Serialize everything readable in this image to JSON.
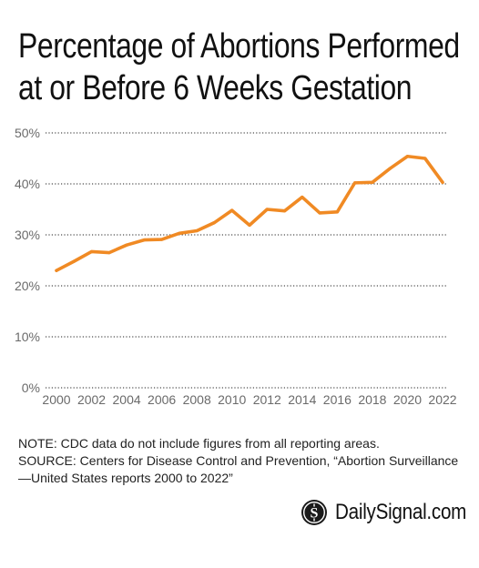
{
  "title_line1": "Percentage of Abortions Performed",
  "title_line2": "at or Before 6 Weeks Gestation",
  "note": "NOTE: CDC data do not include figures from all reporting areas.",
  "source_line1": "SOURCE: Centers for Disease Control and Prevention, “Abortion Surveillance",
  "source_line2": "—United States reports 2000 to 2022”",
  "brand": "DailySignal.com",
  "colors": {
    "line": "#f08a24",
    "grid": "#222222",
    "axis_text": "#6a6a6a"
  },
  "chart_data": {
    "type": "line",
    "title": "Percentage of Abortions Performed at or Before 6 Weeks Gestation",
    "xlabel": "",
    "ylabel": "",
    "x": [
      2000,
      2001,
      2002,
      2003,
      2004,
      2005,
      2006,
      2007,
      2008,
      2009,
      2010,
      2011,
      2012,
      2013,
      2014,
      2015,
      2016,
      2017,
      2018,
      2019,
      2020,
      2021,
      2022
    ],
    "series": [
      {
        "values": [
          23.0,
          24.8,
          26.7,
          26.5,
          28.0,
          29.0,
          29.1,
          30.3,
          30.8,
          32.4,
          34.8,
          31.9,
          35.0,
          34.7,
          37.4,
          34.3,
          34.5,
          40.2,
          40.3,
          43.0,
          45.4,
          45.0,
          40.3
        ]
      }
    ],
    "x_ticks": [
      "2000",
      "2002",
      "2004",
      "2006",
      "2008",
      "2010",
      "2012",
      "2014",
      "2016",
      "2018",
      "2020",
      "2022"
    ],
    "y_ticks": [
      "0%",
      "10%",
      "20%",
      "30%",
      "40%",
      "50%"
    ],
    "xlim": [
      2000,
      2022
    ],
    "ylim": [
      0,
      50
    ],
    "grid": "horizontal dotted",
    "legend": "none"
  }
}
